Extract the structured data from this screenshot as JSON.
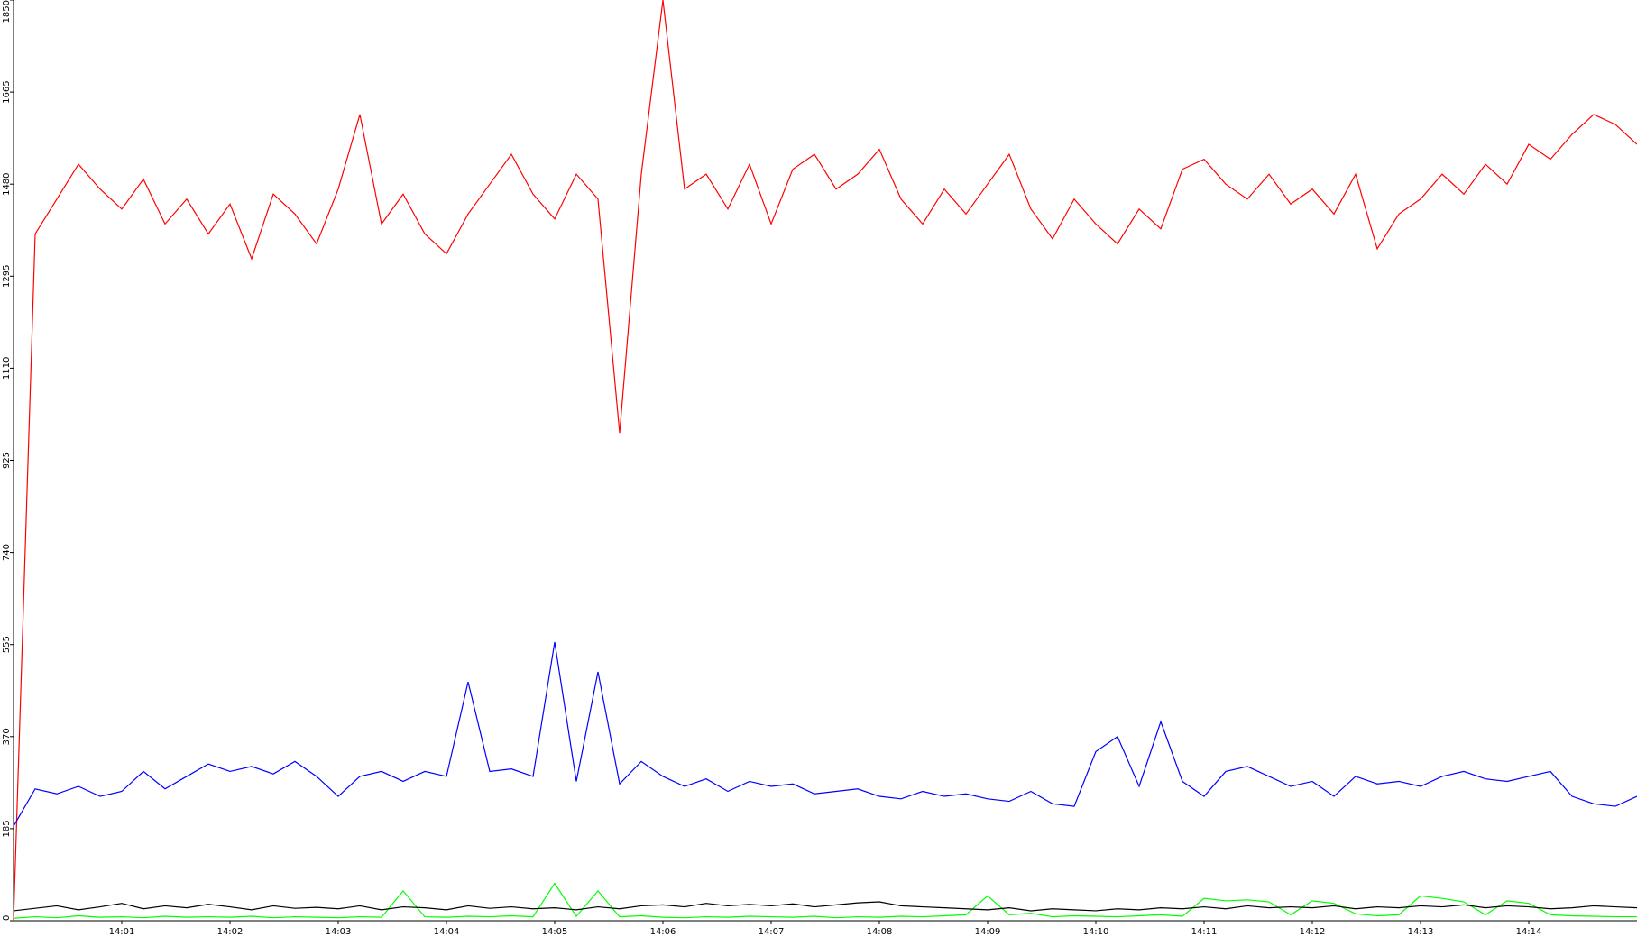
{
  "chart_data": {
    "type": "line",
    "xlim": [
      0,
      15
    ],
    "xticks": [
      {
        "value": 1,
        "label": "14:01"
      },
      {
        "value": 2,
        "label": "14:02"
      },
      {
        "value": 3,
        "label": "14:03"
      },
      {
        "value": 4,
        "label": "14:04"
      },
      {
        "value": 5,
        "label": "14:05"
      },
      {
        "value": 6,
        "label": "14:06"
      },
      {
        "value": 7,
        "label": "14:07"
      },
      {
        "value": 8,
        "label": "14:08"
      },
      {
        "value": 9,
        "label": "14:09"
      },
      {
        "value": 10,
        "label": "14:10"
      },
      {
        "value": 11,
        "label": "14:11"
      },
      {
        "value": 12,
        "label": "14:12"
      },
      {
        "value": 13,
        "label": "14:13"
      },
      {
        "value": 14,
        "label": "14:14"
      }
    ],
    "ylim": [
      0,
      1850
    ],
    "yticks": [
      0,
      185,
      370,
      555,
      740,
      925,
      1110,
      1295,
      1480,
      1665,
      1850
    ],
    "x": [
      0,
      0.2,
      0.4,
      0.6,
      0.8,
      1,
      1.2,
      1.4,
      1.6,
      1.8,
      2,
      2.2,
      2.4,
      2.6,
      2.8,
      3,
      3.2,
      3.4,
      3.6,
      3.8,
      4,
      4.2,
      4.4,
      4.6,
      4.8,
      5,
      5.2,
      5.4,
      5.6,
      5.8,
      6,
      6.2,
      6.4,
      6.6,
      6.8,
      7,
      7.2,
      7.4,
      7.6,
      7.8,
      8,
      8.2,
      8.4,
      8.6,
      8.8,
      9,
      9.2,
      9.4,
      9.6,
      9.8,
      10,
      10.2,
      10.4,
      10.6,
      10.8,
      11,
      11.2,
      11.4,
      11.6,
      11.8,
      12,
      12.2,
      12.4,
      12.6,
      12.8,
      13,
      13.2,
      13.4,
      13.6,
      13.8,
      14,
      14.2,
      14.4,
      14.6,
      14.8,
      15
    ],
    "series": [
      {
        "color": "#ff0000",
        "values": [
          0,
          1380,
          1450,
          1520,
          1470,
          1430,
          1490,
          1400,
          1450,
          1380,
          1440,
          1330,
          1460,
          1420,
          1360,
          1470,
          1620,
          1400,
          1460,
          1380,
          1340,
          1420,
          1480,
          1540,
          1460,
          1410,
          1500,
          1450,
          980,
          1500,
          1850,
          1470,
          1500,
          1430,
          1520,
          1400,
          1510,
          1540,
          1470,
          1500,
          1550,
          1450,
          1400,
          1470,
          1420,
          1480,
          1540,
          1430,
          1370,
          1450,
          1400,
          1360,
          1430,
          1390,
          1510,
          1530,
          1480,
          1450,
          1500,
          1440,
          1470,
          1420,
          1500,
          1350,
          1420,
          1450,
          1500,
          1460,
          1520,
          1480,
          1560,
          1530,
          1580,
          1620,
          1600,
          1560
        ]
      },
      {
        "color": "#0000ff",
        "values": [
          190,
          265,
          255,
          270,
          250,
          260,
          300,
          265,
          290,
          315,
          300,
          310,
          295,
          320,
          290,
          250,
          290,
          300,
          280,
          300,
          290,
          480,
          300,
          305,
          290,
          560,
          280,
          500,
          275,
          320,
          290,
          270,
          285,
          260,
          280,
          270,
          275,
          255,
          260,
          265,
          250,
          245,
          260,
          250,
          255,
          245,
          240,
          260,
          235,
          230,
          340,
          370,
          270,
          400,
          280,
          250,
          300,
          310,
          290,
          270,
          280,
          250,
          290,
          275,
          280,
          270,
          290,
          300,
          285,
          280,
          290,
          300,
          250,
          235,
          230,
          250
        ]
      },
      {
        "color": "#00ff00",
        "values": [
          5,
          8,
          6,
          10,
          7,
          8,
          6,
          9,
          7,
          8,
          7,
          9,
          6,
          8,
          7,
          6,
          8,
          7,
          60,
          8,
          7,
          9,
          8,
          10,
          8,
          75,
          9,
          60,
          8,
          10,
          7,
          6,
          8,
          7,
          9,
          8,
          7,
          9,
          6,
          8,
          7,
          9,
          8,
          10,
          12,
          50,
          12,
          15,
          8,
          10,
          9,
          8,
          10,
          12,
          9,
          45,
          40,
          42,
          38,
          12,
          40,
          35,
          14,
          10,
          12,
          50,
          45,
          38,
          12,
          40,
          35,
          12,
          10,
          9,
          8,
          8
        ]
      },
      {
        "color": "#000000",
        "values": [
          20,
          25,
          30,
          22,
          28,
          35,
          24,
          30,
          26,
          33,
          28,
          22,
          30,
          25,
          27,
          24,
          30,
          22,
          28,
          26,
          22,
          30,
          25,
          28,
          24,
          26,
          22,
          28,
          24,
          30,
          32,
          28,
          35,
          30,
          33,
          30,
          34,
          28,
          32,
          36,
          38,
          30,
          28,
          26,
          24,
          22,
          26,
          20,
          24,
          22,
          20,
          24,
          22,
          26,
          24,
          28,
          24,
          30,
          26,
          28,
          26,
          30,
          24,
          28,
          26,
          30,
          28,
          32,
          26,
          30,
          28,
          24,
          26,
          30,
          28,
          26
        ]
      }
    ]
  }
}
